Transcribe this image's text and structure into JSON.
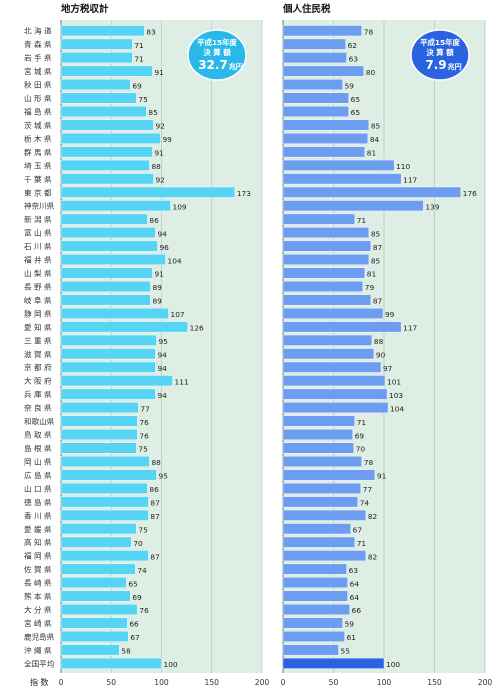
{
  "chart_data": [
    {
      "type": "bar",
      "orientation": "horizontal",
      "title": "地方税収計",
      "badge": {
        "line1": "平成15年度",
        "line2": "決 算 額",
        "value": "32.7",
        "unit": "兆円"
      },
      "bar_color": "#55d4f5",
      "average_bar_color": "#55d4f5",
      "panel_color": "#deeee4",
      "badge_color": "#2ab8ea",
      "xlim": [
        0,
        200
      ],
      "grid": true,
      "values": [
        83,
        71,
        71,
        91,
        69,
        75,
        85,
        92,
        99,
        91,
        88,
        92,
        173,
        109,
        86,
        94,
        96,
        104,
        91,
        89,
        89,
        107,
        126,
        95,
        94,
        94,
        111,
        94,
        77,
        76,
        76,
        75,
        88,
        95,
        86,
        87,
        87,
        75,
        70,
        87,
        74,
        65,
        69,
        76,
        66,
        67,
        58,
        100
      ]
    },
    {
      "type": "bar",
      "orientation": "horizontal",
      "title": "個人住民税",
      "badge": {
        "line1": "平成15年度",
        "line2": "決 算 額",
        "value": "7.9",
        "unit": "兆円"
      },
      "bar_color": "#6c9df0",
      "average_bar_color": "#2a63e0",
      "panel_color": "#deeee4",
      "badge_color": "#2a63e0",
      "xlim": [
        0,
        200
      ],
      "grid": true,
      "values": [
        78,
        62,
        63,
        80,
        59,
        65,
        65,
        85,
        84,
        81,
        110,
        117,
        176,
        139,
        71,
        85,
        87,
        85,
        81,
        79,
        87,
        99,
        117,
        88,
        90,
        97,
        101,
        103,
        104,
        71,
        69,
        70,
        78,
        91,
        77,
        74,
        82,
        67,
        71,
        82,
        63,
        64,
        64,
        66,
        59,
        61,
        55,
        100
      ]
    }
  ],
  "categories": [
    "北 海 道",
    "青 森 県",
    "岩 手 県",
    "宮 城 県",
    "秋 田 県",
    "山 形 県",
    "福 島 県",
    "茨 城 県",
    "栃 木 県",
    "群 馬 県",
    "埼 玉 県",
    "千 葉 県",
    "東 京 都",
    "神奈川県",
    "新 潟 県",
    "富 山 県",
    "石 川 県",
    "福 井 県",
    "山 梨 県",
    "長 野 県",
    "岐 阜 県",
    "静 岡 県",
    "愛 知 県",
    "三 重 県",
    "滋 賀 県",
    "京 都 府",
    "大 阪 府",
    "兵 庫 県",
    "奈 良 県",
    "和歌山県",
    "鳥 取 県",
    "島 根 県",
    "岡 山 県",
    "広 島 県",
    "山 口 県",
    "徳 島 県",
    "香 川 県",
    "愛 媛 県",
    "高 知 県",
    "福 岡 県",
    "佐 賀 県",
    "長 崎 県",
    "熊 本 県",
    "大 分 県",
    "宮 崎 県",
    "鹿児島県",
    "沖 縄 県",
    "全国平均"
  ],
  "x_axis": {
    "label": "指 数",
    "ticks": [
      "0",
      "50",
      "100",
      "150",
      "200"
    ]
  }
}
